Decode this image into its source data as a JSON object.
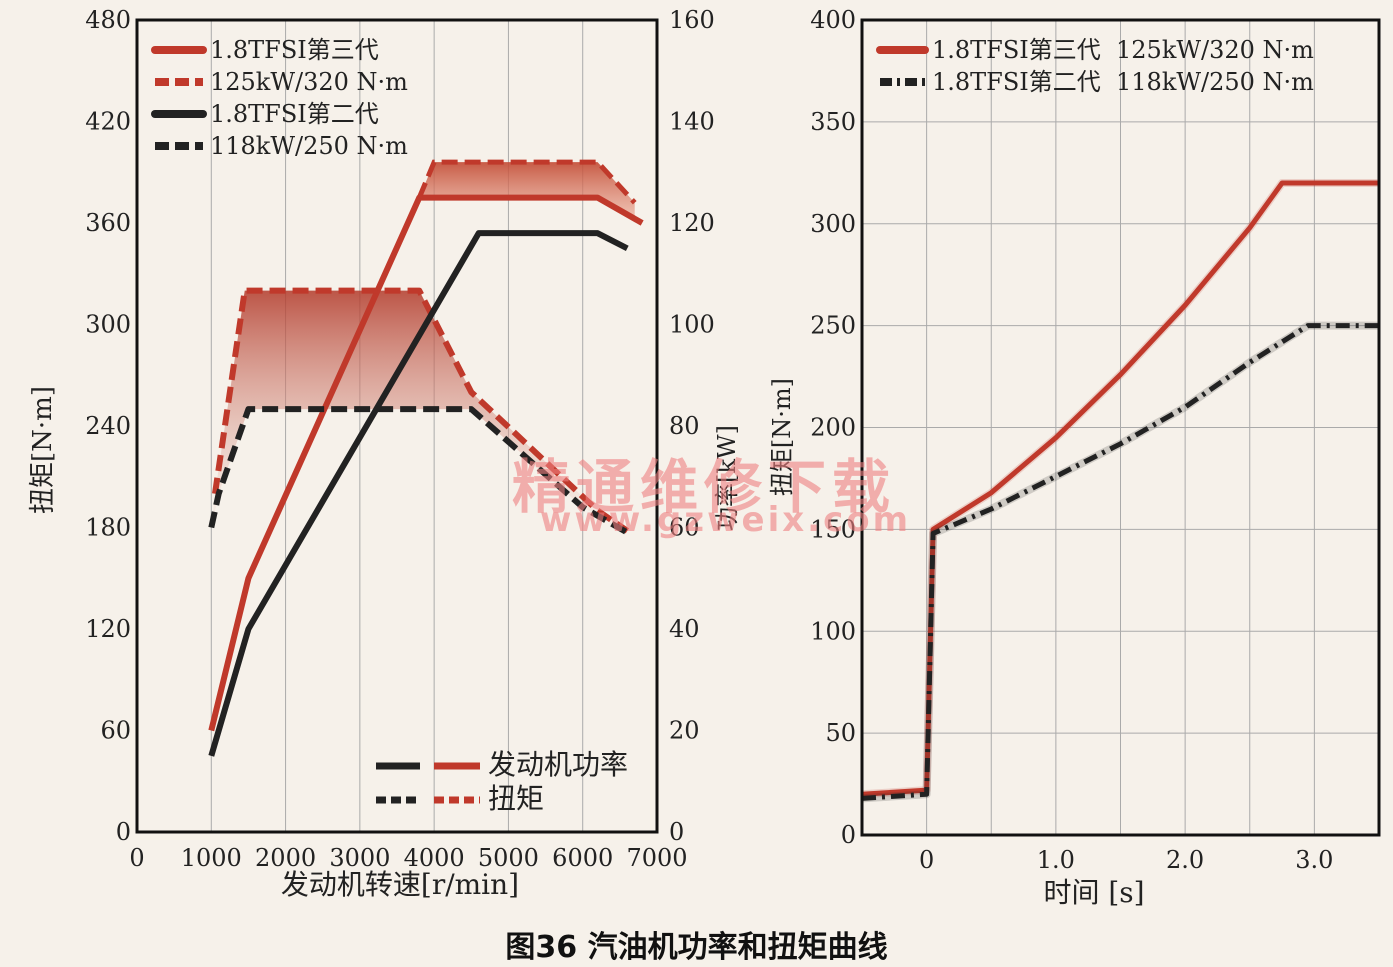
{
  "caption": "图36 汽油机功率和扭矩曲线",
  "watermark": {
    "line1": "精通维修下载",
    "line2": "www.gzweix.com"
  },
  "colors": {
    "red": "#c0392b",
    "dark": "#222222",
    "frame": "#111111",
    "grid": "#aaaaaa"
  },
  "chart_data": [
    {
      "type": "line",
      "xlabel": "发动机转速[r/min]",
      "ylabel": "扭矩[N·m]",
      "y2label": "功率[kW]",
      "xlim": [
        0,
        7000
      ],
      "ylim": [
        0,
        480
      ],
      "y2lim": [
        0,
        160
      ],
      "xticks": [
        "0",
        "1000",
        "2000",
        "3000",
        "4000",
        "5000",
        "6000",
        "7000"
      ],
      "yticks": [
        "0",
        "60",
        "120",
        "180",
        "240",
        "300",
        "360",
        "420",
        "480"
      ],
      "y2ticks": [
        "0",
        "20",
        "40",
        "60",
        "80",
        "100",
        "120",
        "140",
        "160"
      ],
      "legend_top": [
        "1.8TFSI第三代",
        "125kW/320 N·m",
        "1.8TFSI第二代",
        "118kW/250 N·m"
      ],
      "legend_bottom": [
        "发动机功率",
        "扭矩"
      ],
      "series": [
        {
          "name": "1.8TFSI第三代",
          "color": "red",
          "dash": "solid",
          "x": [
            1000,
            1500,
            3800,
            6200,
            6800
          ],
          "y": [
            20,
            50,
            125,
            125,
            120
          ]
        },
        {
          "name": "125kW/320 N·m",
          "color": "red",
          "dash": "dash",
          "x": [
            1050,
            1450,
            3800,
            4500,
            6200,
            6600
          ],
          "y": [
            200,
            320,
            320,
            260,
            190,
            178
          ]
        },
        {
          "name": "1.8TFSI第二代",
          "color": "dark",
          "dash": "solid",
          "x": [
            1000,
            1500,
            4600,
            6200,
            6600
          ],
          "y": [
            15,
            40,
            118,
            118,
            115
          ]
        },
        {
          "name": "118kW/250 N·m",
          "color": "dark",
          "dash": "dash",
          "x": [
            1000,
            1100,
            1500,
            4500,
            6000,
            6600
          ],
          "y": [
            180,
            200,
            250,
            250,
            192,
            177
          ]
        }
      ],
      "red_power_upper_band": {
        "x": [
          3800,
          4000,
          6200,
          6700
        ],
        "y": [
          125,
          132,
          132,
          124
        ]
      }
    },
    {
      "type": "line",
      "xlabel": "时间 [s]",
      "ylabel": "扭矩[N·m]",
      "xlim": [
        -0.5,
        3.5
      ],
      "ylim": [
        0,
        400
      ],
      "xticks": [
        "0",
        "1.0",
        "2.0",
        "3.0"
      ],
      "yticks": [
        "0",
        "50",
        "100",
        "150",
        "200",
        "250",
        "300",
        "350",
        "400"
      ],
      "series": [
        {
          "name": "1.8TFSI第三代  125kW/320 N·m",
          "color": "red",
          "dash": "solid",
          "x": [
            -0.5,
            0.0,
            0.05,
            0.5,
            1.0,
            1.5,
            2.0,
            2.5,
            2.75,
            3.5
          ],
          "y": [
            20,
            22,
            150,
            168,
            195,
            226,
            260,
            298,
            320,
            320
          ]
        },
        {
          "name": "1.8TFSI第二代  118kW/250 N·m",
          "color": "dark",
          "dash": "dashdot",
          "x": [
            -0.5,
            0.0,
            0.05,
            0.5,
            1.0,
            1.5,
            2.0,
            2.5,
            2.95,
            3.5
          ],
          "y": [
            18,
            20,
            148,
            160,
            176,
            192,
            210,
            232,
            250,
            250
          ]
        }
      ]
    }
  ]
}
